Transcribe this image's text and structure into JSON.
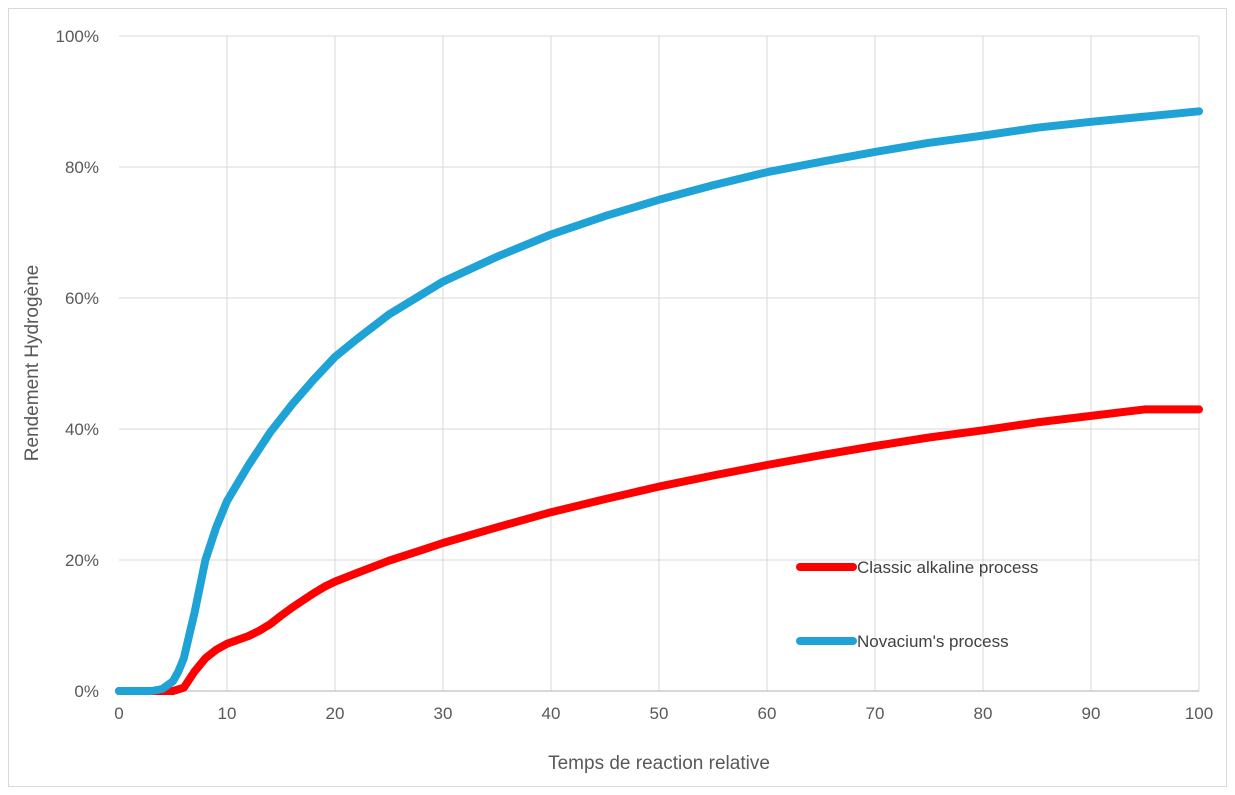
{
  "chart_data": {
    "type": "line",
    "title": "",
    "xlabel": "Temps de reaction relative",
    "ylabel": "Rendement Hydrogène",
    "xlim": [
      0,
      100
    ],
    "ylim": [
      0,
      1
    ],
    "x_ticks": [
      "0",
      "10",
      "20",
      "30",
      "40",
      "50",
      "60",
      "70",
      "80",
      "90",
      "100"
    ],
    "y_ticks": [
      "0%",
      "20%",
      "40%",
      "60%",
      "80%",
      "100%"
    ],
    "grid": true,
    "legend_position": "bottom-right inside plot",
    "series": [
      {
        "name": "Classic alkaline process",
        "color": "#ff0000",
        "points": [
          [
            0,
            0
          ],
          [
            5,
            0
          ],
          [
            6,
            0.005
          ],
          [
            7,
            0.03
          ],
          [
            8,
            0.05
          ],
          [
            9,
            0.063
          ],
          [
            10,
            0.072
          ],
          [
            11,
            0.078
          ],
          [
            12,
            0.084
          ],
          [
            13,
            0.092
          ],
          [
            14,
            0.102
          ],
          [
            15,
            0.115
          ],
          [
            16,
            0.127
          ],
          [
            17,
            0.138
          ],
          [
            18,
            0.149
          ],
          [
            19,
            0.159
          ],
          [
            20,
            0.167
          ],
          [
            22,
            0.18
          ],
          [
            25,
            0.199
          ],
          [
            28,
            0.215
          ],
          [
            30,
            0.226
          ],
          [
            35,
            0.25
          ],
          [
            40,
            0.273
          ],
          [
            45,
            0.293
          ],
          [
            50,
            0.312
          ],
          [
            55,
            0.329
          ],
          [
            60,
            0.345
          ],
          [
            65,
            0.36
          ],
          [
            70,
            0.374
          ],
          [
            75,
            0.387
          ],
          [
            80,
            0.398
          ],
          [
            85,
            0.41
          ],
          [
            90,
            0.42
          ],
          [
            95,
            0.43
          ],
          [
            100,
            0.43
          ]
        ]
      },
      {
        "name": "Novacium's process",
        "color": "#1fa2d6",
        "points": [
          [
            0,
            0
          ],
          [
            3,
            0
          ],
          [
            4,
            0.003
          ],
          [
            5,
            0.015
          ],
          [
            5.5,
            0.03
          ],
          [
            6,
            0.05
          ],
          [
            6.5,
            0.085
          ],
          [
            7,
            0.12
          ],
          [
            7.5,
            0.16
          ],
          [
            8,
            0.2
          ],
          [
            9,
            0.25
          ],
          [
            10,
            0.29
          ],
          [
            12,
            0.345
          ],
          [
            14,
            0.395
          ],
          [
            16,
            0.437
          ],
          [
            18,
            0.475
          ],
          [
            20,
            0.51
          ],
          [
            22,
            0.537
          ],
          [
            25,
            0.575
          ],
          [
            28,
            0.605
          ],
          [
            30,
            0.625
          ],
          [
            35,
            0.663
          ],
          [
            40,
            0.697
          ],
          [
            45,
            0.725
          ],
          [
            50,
            0.75
          ],
          [
            55,
            0.772
          ],
          [
            60,
            0.792
          ],
          [
            65,
            0.808
          ],
          [
            70,
            0.823
          ],
          [
            75,
            0.837
          ],
          [
            80,
            0.848
          ],
          [
            85,
            0.86
          ],
          [
            90,
            0.869
          ],
          [
            95,
            0.877
          ],
          [
            100,
            0.885
          ]
        ]
      }
    ]
  }
}
